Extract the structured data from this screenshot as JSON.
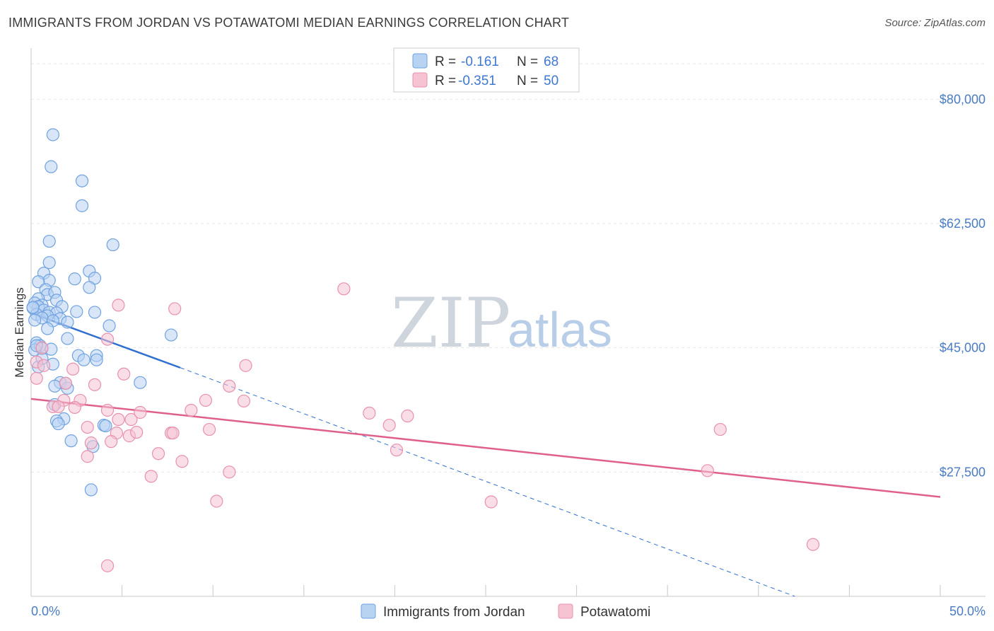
{
  "chart_data": {
    "type": "scatter",
    "title": "IMMIGRANTS FROM JORDAN VS POTAWATOMI MEDIAN EARNINGS CORRELATION CHART",
    "source": "Source: ZipAtlas.com",
    "ylabel": "Median Earnings",
    "xlim": [
      0,
      50
    ],
    "ylim": [
      10000,
      87000
    ],
    "x_tick_labels": {
      "left": "0.0%",
      "right": "50.0%"
    },
    "y_ticks": [
      {
        "value": 27500,
        "label": "$27,500"
      },
      {
        "value": 45000,
        "label": "$45,000"
      },
      {
        "value": 62500,
        "label": "$62,500"
      },
      {
        "value": 80000,
        "label": "$80,000"
      }
    ],
    "watermark": {
      "zip": "ZIP",
      "atlas": "atlas"
    },
    "legend": [
      {
        "r_label": "R =",
        "r_value": "-0.161",
        "n_label": "N =",
        "n_value": "68"
      },
      {
        "r_label": "R =",
        "r_value": "-0.351",
        "n_label": "N =",
        "n_value": "50"
      }
    ],
    "series": [
      {
        "name": "Immigrants from Jordan",
        "color": "#6fa2e0",
        "fill": "#b8d2f2",
        "line_color": "#2f6fd0",
        "trend": {
          "x0": 0.1,
          "y0": 49800,
          "x1": 8.2,
          "y1": 42200,
          "dash_to_x": 42,
          "dash_to_y": 10000
        },
        "points": [
          [
            1.2,
            75000
          ],
          [
            1.1,
            70500
          ],
          [
            2.8,
            68500
          ],
          [
            2.8,
            65000
          ],
          [
            1.0,
            60000
          ],
          [
            4.5,
            59500
          ],
          [
            1.0,
            57000
          ],
          [
            3.2,
            55800
          ],
          [
            0.7,
            55500
          ],
          [
            1.0,
            54500
          ],
          [
            2.4,
            54700
          ],
          [
            3.5,
            54800
          ],
          [
            0.4,
            54300
          ],
          [
            0.8,
            53200
          ],
          [
            3.2,
            53500
          ],
          [
            0.9,
            52500
          ],
          [
            1.3,
            52800
          ],
          [
            0.4,
            51900
          ],
          [
            1.4,
            51700
          ],
          [
            0.2,
            51300
          ],
          [
            0.6,
            51000
          ],
          [
            0.4,
            50800
          ],
          [
            0.1,
            50600
          ],
          [
            1.7,
            50800
          ],
          [
            0.7,
            50300
          ],
          [
            1.0,
            50000
          ],
          [
            2.5,
            50100
          ],
          [
            3.5,
            50000
          ],
          [
            1.4,
            49900
          ],
          [
            0.3,
            49700
          ],
          [
            0.9,
            49500
          ],
          [
            0.6,
            49200
          ],
          [
            1.6,
            49100
          ],
          [
            0.2,
            48900
          ],
          [
            1.2,
            48800
          ],
          [
            2.0,
            48600
          ],
          [
            4.3,
            48100
          ],
          [
            0.9,
            47700
          ],
          [
            7.7,
            46800
          ],
          [
            2.0,
            46300
          ],
          [
            0.3,
            45700
          ],
          [
            0.5,
            45300
          ],
          [
            0.6,
            44900
          ],
          [
            1.1,
            44800
          ],
          [
            0.2,
            44700
          ],
          [
            2.6,
            43900
          ],
          [
            3.6,
            43900
          ],
          [
            2.9,
            43300
          ],
          [
            3.6,
            43300
          ],
          [
            1.2,
            42700
          ],
          [
            0.4,
            42300
          ],
          [
            6.0,
            40100
          ],
          [
            1.6,
            40100
          ],
          [
            1.3,
            39600
          ],
          [
            2.0,
            39300
          ],
          [
            1.3,
            37000
          ],
          [
            1.8,
            35000
          ],
          [
            1.4,
            34700
          ],
          [
            1.5,
            34300
          ],
          [
            4.0,
            34100
          ],
          [
            4.1,
            34000
          ],
          [
            2.2,
            31900
          ],
          [
            3.4,
            31100
          ],
          [
            3.3,
            25000
          ],
          [
            0.1,
            50700
          ],
          [
            0.3,
            45300
          ],
          [
            0.6,
            43500
          ],
          [
            1.9,
            40000
          ]
        ]
      },
      {
        "name": "Potawatomi",
        "color": "#e891ad",
        "fill": "#f6c3d3",
        "line_color": "#e0608c",
        "trend": {
          "x0": 0.0,
          "y0": 37800,
          "x1": 50.0,
          "y1": 24000
        },
        "points": [
          [
            0.3,
            43000
          ],
          [
            0.7,
            42500
          ],
          [
            0.3,
            40700
          ],
          [
            1.8,
            37600
          ],
          [
            1.2,
            36700
          ],
          [
            1.5,
            36700
          ],
          [
            2.7,
            37600
          ],
          [
            2.3,
            42000
          ],
          [
            1.9,
            40000
          ],
          [
            3.5,
            39800
          ],
          [
            4.2,
            36200
          ],
          [
            5.1,
            41300
          ],
          [
            4.7,
            33000
          ],
          [
            5.5,
            34900
          ],
          [
            6.0,
            35900
          ],
          [
            5.4,
            32600
          ],
          [
            5.8,
            33100
          ],
          [
            4.4,
            31800
          ],
          [
            3.1,
            33800
          ],
          [
            3.3,
            31600
          ],
          [
            3.1,
            29700
          ],
          [
            7.0,
            30100
          ],
          [
            6.6,
            26900
          ],
          [
            8.3,
            29000
          ],
          [
            7.7,
            33000
          ],
          [
            8.8,
            36200
          ],
          [
            9.6,
            37600
          ],
          [
            9.8,
            33500
          ],
          [
            10.9,
            39600
          ],
          [
            11.8,
            42500
          ],
          [
            11.7,
            37500
          ],
          [
            10.9,
            27500
          ],
          [
            10.2,
            23400
          ],
          [
            4.8,
            51000
          ],
          [
            7.9,
            50500
          ],
          [
            4.2,
            46200
          ],
          [
            17.2,
            53300
          ],
          [
            18.6,
            35800
          ],
          [
            19.7,
            34100
          ],
          [
            20.7,
            35400
          ],
          [
            20.1,
            30600
          ],
          [
            25.3,
            23300
          ],
          [
            37.2,
            27700
          ],
          [
            37.9,
            33500
          ],
          [
            43.0,
            17300
          ],
          [
            4.2,
            14300
          ],
          [
            0.6,
            45000
          ],
          [
            2.4,
            36600
          ],
          [
            7.8,
            33000
          ],
          [
            4.8,
            34900
          ]
        ]
      }
    ]
  }
}
